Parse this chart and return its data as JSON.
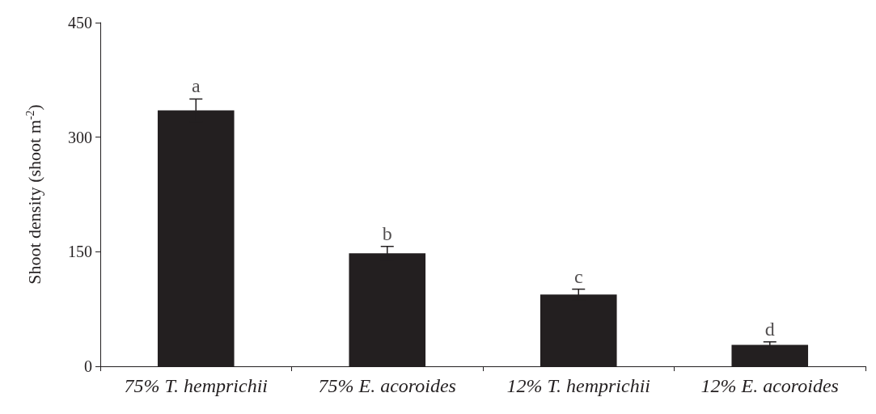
{
  "chart_data": {
    "type": "bar",
    "ylabel": "Shoot density (shoot m$^{-2}$)",
    "categories": [
      "75% T. hemprichii",
      "75% E. acoroides",
      "12% T. hemprichii",
      "12% E. acoroides"
    ],
    "values": [
      335,
      148,
      94,
      28
    ],
    "errors": [
      15,
      9,
      7,
      4
    ],
    "color": "#231f20",
    "ylim": [
      0,
      450
    ],
    "yticks": [
      0,
      150,
      300,
      450
    ],
    "grid": false,
    "annotations": [
      "a",
      "b",
      "c",
      "d"
    ]
  }
}
